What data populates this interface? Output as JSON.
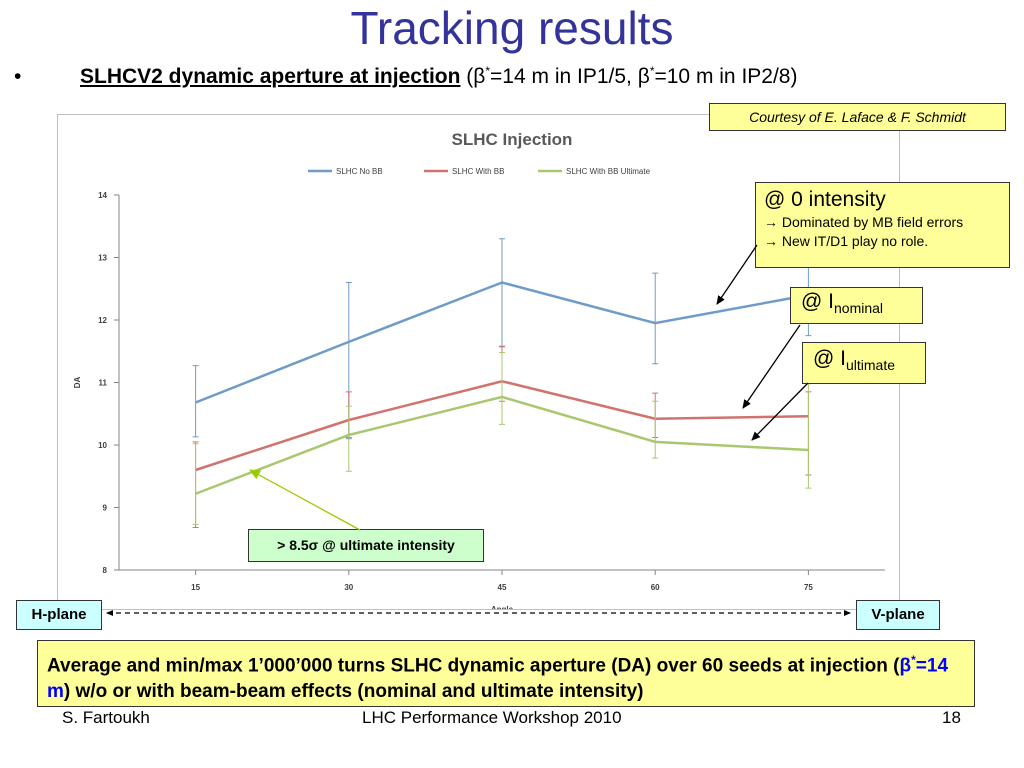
{
  "slide": {
    "title": "Tracking results",
    "bullet": "•",
    "heading": "SLHCV2 dynamic aperture at injection",
    "subtitle_open": "(",
    "beta_symbol": "β",
    "star": "*",
    "subtitle_mid": "=14 m in IP1/5, ",
    "subtitle_end": "=10 m in IP2/8)",
    "courtesy": "Courtesy of E. Laface & F. Schmidt"
  },
  "notes": {
    "zero": {
      "title": "@ 0 intensity",
      "line1": "→ Dominated by MB field errors",
      "line2": "→ New IT/D1 play no role."
    },
    "nominal": {
      "prefix": "@  I",
      "sub": "nominal"
    },
    "ultimate": {
      "prefix": "@ I",
      "sub": "ultimate"
    },
    "green": "> 8.5σ @ ultimate intensity"
  },
  "planes": {
    "h": "H-plane",
    "v": "V-plane"
  },
  "summary": {
    "part1": "Average and min/max 1’000’000 turns SLHC dynamic aperture (DA) over 60 seeds at injection (",
    "beta": "β",
    "star": "*",
    "eq": "=14 m",
    "part2": ") w/o or with beam-beam effects (nominal and ultimate intensity)"
  },
  "footer": {
    "author": "S. Fartoukh",
    "event": "LHC Performance Workshop 2010",
    "page": "18"
  },
  "colors": {
    "no_bb": "#6f9bc8",
    "with_bb": "#d2726f",
    "ultimate": "#a8c870",
    "title": "#333399",
    "note_yellow": "#ffff99",
    "plane_cyan": "#ccffff",
    "note_green": "#ccffcc"
  },
  "chart_data": {
    "type": "line",
    "title": "SLHC Injection",
    "xlabel": "Angle",
    "ylabel": "DA",
    "categories": [
      "15",
      "30",
      "45",
      "60",
      "75"
    ],
    "yticks": [
      "8",
      "9",
      "10",
      "11",
      "12",
      "13",
      "14"
    ],
    "ylim": [
      8,
      14
    ],
    "legend": "top",
    "grid": false,
    "series": [
      {
        "name": "SLHC No BB",
        "color": "#6f9bc8",
        "values": [
          10.68,
          11.65,
          12.6,
          11.95,
          12.4
        ],
        "min": [
          10.13,
          10.1,
          11.57,
          11.3,
          11.75
        ],
        "max": [
          11.27,
          12.6,
          13.3,
          12.75,
          12.85
        ]
      },
      {
        "name": "SLHC With BB",
        "color": "#d2726f",
        "values": [
          9.6,
          10.4,
          11.02,
          10.42,
          10.46
        ],
        "min": [
          8.68,
          10.12,
          10.7,
          10.12,
          9.52
        ],
        "max": [
          10.05,
          10.85,
          11.58,
          10.83,
          10.85
        ]
      },
      {
        "name": "SLHC With BB Ultimate",
        "color": "#a8c870",
        "values": [
          9.22,
          10.16,
          10.77,
          10.05,
          9.92
        ],
        "min": [
          8.73,
          9.58,
          10.33,
          9.79,
          9.31
        ],
        "max": [
          10.02,
          10.62,
          11.48,
          10.7,
          10.98
        ]
      }
    ]
  }
}
